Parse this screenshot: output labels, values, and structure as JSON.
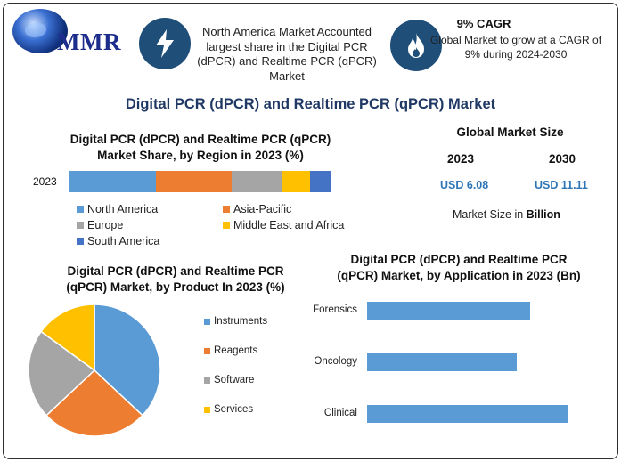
{
  "brand": {
    "logo_text": "MMR"
  },
  "header": {
    "na_text": "North America Market Accounted largest share in the Digital PCR (dPCR) and Realtime PCR (qPCR) Market",
    "cagr_title": "9% CAGR",
    "cagr_text": "Global Market to grow at a CAGR of 9% during 2024-2030",
    "icons": [
      "lightning-bolt-icon",
      "flame-icon"
    ]
  },
  "main_title": "Digital PCR (dPCR) and Realtime PCR (qPCR) Market",
  "global_market": {
    "title": "Global Market Size",
    "year_a": "2023",
    "year_b": "2030",
    "value_a": "USD 6.08",
    "value_b": "USD 11.11",
    "note_prefix": "Market Size in ",
    "note_unit": "Billion"
  },
  "colors": {
    "navy": "#1f4e79",
    "title_blue": "#1f3864",
    "value_blue": "#2e75b6",
    "north_america": "#5b9bd5",
    "asia_pacific": "#ed7d31",
    "europe": "#a5a5a5",
    "middle_east_africa": "#ffc000",
    "south_america": "#4472c4"
  },
  "chart_data": [
    {
      "type": "bar",
      "orientation": "horizontal-stacked",
      "title": "Digital PCR (dPCR) and Realtime PCR (qPCR) Market Share, by Region in 2023 (%)",
      "categories": [
        "2023"
      ],
      "series": [
        {
          "name": "North America",
          "values": [
            33
          ],
          "color": "#5b9bd5"
        },
        {
          "name": "Asia-Pacific",
          "values": [
            29
          ],
          "color": "#ed7d31"
        },
        {
          "name": "Europe",
          "values": [
            19
          ],
          "color": "#a5a5a5"
        },
        {
          "name": "Middle East and Africa",
          "values": [
            11
          ],
          "color": "#ffc000"
        },
        {
          "name": "South America",
          "values": [
            8
          ],
          "color": "#4472c4"
        }
      ],
      "legend": "bottom",
      "grid": false
    },
    {
      "type": "pie",
      "title": "Digital PCR (dPCR) and Realtime PCR (qPCR) Market, by Product In 2023 (%)",
      "labels": [
        "Instruments",
        "Reagents",
        "Software",
        "Services"
      ],
      "values": [
        37,
        26,
        22,
        15
      ],
      "colors": [
        "#5b9bd5",
        "#ed7d31",
        "#a5a5a5",
        "#ffc000"
      ],
      "legend": "right"
    },
    {
      "type": "bar",
      "orientation": "horizontal",
      "title": "Digital PCR (dPCR) and Realtime PCR (qPCR) Market, by Application in 2023 (Bn)",
      "categories": [
        "Forensics",
        "Oncology",
        "Clinical"
      ],
      "values": [
        1.83,
        1.68,
        2.25
      ],
      "xlim": [
        0,
        2.5
      ],
      "color": "#5b9bd5",
      "grid": false
    }
  ]
}
